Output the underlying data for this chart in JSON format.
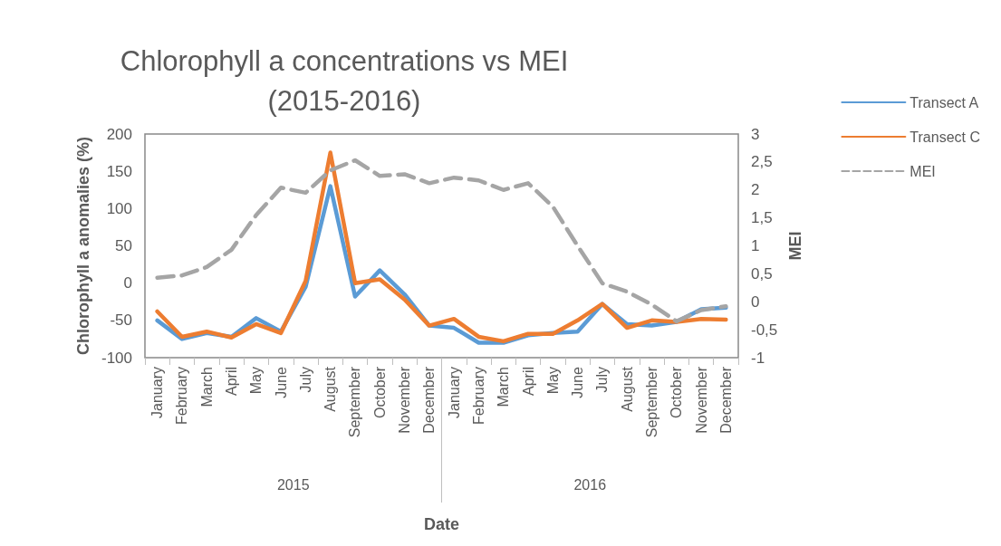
{
  "chart_data": {
    "type": "line",
    "title": "Chlorophyll a concentrations vs MEI\n(2015-2016)",
    "xlabel": "Date",
    "ylabel": "Chlorophyll a anomalies (%)",
    "y2label": "MEI",
    "categories": [
      "January",
      "February",
      "March",
      "April",
      "May",
      "June",
      "July",
      "August",
      "September",
      "October",
      "November",
      "December",
      "January",
      "February",
      "March",
      "April",
      "May",
      "June",
      "July",
      "August",
      "September",
      "October",
      "November",
      "December"
    ],
    "annotations": [
      "2015",
      "2016"
    ],
    "series": [
      {
        "name": "Transect A",
        "color": "#5b9bd5",
        "values": [
          -50,
          -75,
          -67,
          -72,
          -47,
          -65,
          -5,
          130,
          -18,
          17,
          -15,
          -57,
          -60,
          -80,
          -80,
          -70,
          -67,
          -65,
          -28,
          -55,
          -57,
          -52,
          -35,
          -33
        ]
      },
      {
        "name": "Transect C",
        "color": "#ed7d31",
        "values": [
          -38,
          -72,
          -65,
          -73,
          -55,
          -67,
          3,
          175,
          0,
          5,
          -22,
          -57,
          -48,
          -72,
          -78,
          -68,
          -68,
          -50,
          -28,
          -60,
          -50,
          -52,
          -48,
          -49
        ]
      },
      {
        "name": "MEI",
        "color": "#a5a5a5",
        "axis": "y2",
        "line_style": "dashed",
        "values": [
          0.43,
          0.47,
          0.62,
          0.93,
          1.55,
          2.04,
          1.95,
          2.35,
          2.53,
          2.25,
          2.28,
          2.12,
          2.22,
          2.17,
          2.0,
          2.12,
          1.7,
          1.0,
          0.33,
          0.18,
          -0.05,
          -0.35,
          -0.15,
          -0.08
        ]
      }
    ],
    "ylim": [
      -100,
      200
    ],
    "yticks": [
      -100,
      -50,
      0,
      50,
      100,
      150,
      200
    ],
    "y2lim": [
      -1,
      3
    ],
    "y2ticks": [
      -1,
      {
        "value": -0.5,
        "label": "-0,5"
      },
      0,
      {
        "value": 0.5,
        "label": "0,5"
      },
      1,
      {
        "value": 1.5,
        "label": "1,5"
      },
      2,
      {
        "value": 2.5,
        "label": "2,5"
      },
      3
    ],
    "grid": false,
    "legend": "right",
    "marker": "none",
    "line_style": "solid"
  }
}
